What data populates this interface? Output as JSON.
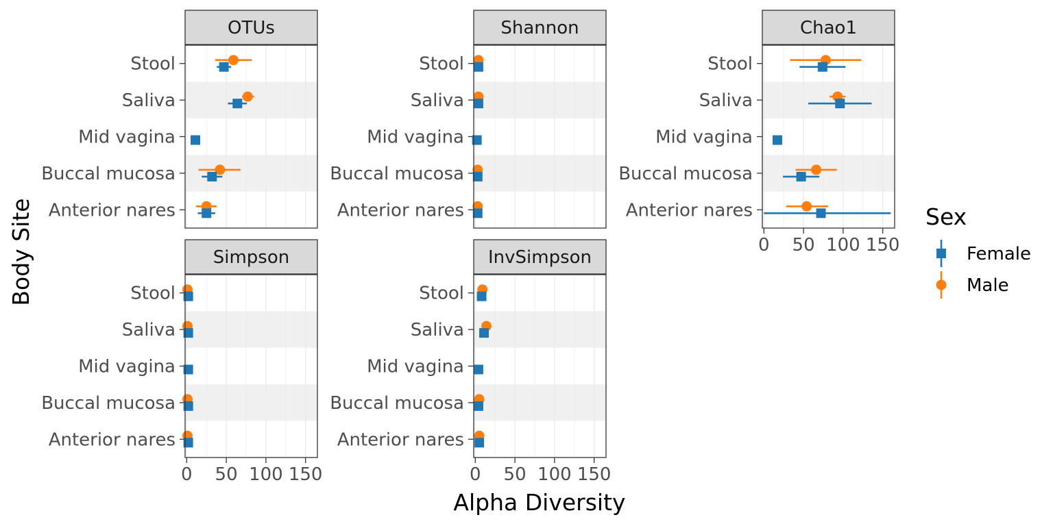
{
  "chart_data": {
    "type": "scatter",
    "xlabel": "Alpha Diversity",
    "ylabel": "Body Site",
    "xlim": [
      -2,
      165
    ],
    "xticks": [
      "0",
      "50",
      "100",
      "150"
    ],
    "xtick_values": [
      0,
      50,
      100,
      150
    ],
    "categories": [
      "Stool",
      "Saliva",
      "Mid vagina",
      "Buccal mucosa",
      "Anterior nares"
    ],
    "legend": {
      "title": "Sex",
      "position": "right",
      "entries": [
        {
          "name": "Female",
          "color": "#1f77b4",
          "shape": "square"
        },
        {
          "name": "Male",
          "color": "#ff7f0e",
          "shape": "circle"
        }
      ]
    },
    "colors": {
      "Female": "#1f77b4",
      "Male": "#ff7f0e",
      "strip_fill": "#d9d9d9",
      "band_fill": "#f0f0f0"
    },
    "facets": [
      {
        "name": "OTUs",
        "series": [
          {
            "name": "Female",
            "points": [
              {
                "site": "Stool",
                "x": 47,
                "lo": 38,
                "hi": 56
              },
              {
                "site": "Saliva",
                "x": 64,
                "lo": 52,
                "hi": 76
              },
              {
                "site": "Mid vagina",
                "x": 11,
                "lo": 9,
                "hi": 13
              },
              {
                "site": "Buccal mucosa",
                "x": 32,
                "lo": 19,
                "hi": 45
              },
              {
                "site": "Anterior nares",
                "x": 25,
                "lo": 14,
                "hi": 36
              }
            ]
          },
          {
            "name": "Male",
            "points": [
              {
                "site": "Stool",
                "x": 59,
                "lo": 36,
                "hi": 82
              },
              {
                "site": "Saliva",
                "x": 77,
                "lo": 70,
                "hi": 85
              },
              {
                "site": "Buccal mucosa",
                "x": 42,
                "lo": 15,
                "hi": 68
              },
              {
                "site": "Anterior nares",
                "x": 25,
                "lo": 12,
                "hi": 38
              }
            ]
          }
        ]
      },
      {
        "name": "Shannon",
        "series": [
          {
            "name": "Female",
            "points": [
              {
                "site": "Stool",
                "x": 4,
                "lo": 3,
                "hi": 5
              },
              {
                "site": "Saliva",
                "x": 4,
                "lo": 3,
                "hi": 5
              },
              {
                "site": "Mid vagina",
                "x": 2,
                "lo": 1,
                "hi": 3
              },
              {
                "site": "Buccal mucosa",
                "x": 3,
                "lo": 2,
                "hi": 4
              },
              {
                "site": "Anterior nares",
                "x": 3,
                "lo": 2,
                "hi": 4
              }
            ]
          },
          {
            "name": "Male",
            "points": [
              {
                "site": "Stool",
                "x": 4,
                "lo": 3,
                "hi": 5
              },
              {
                "site": "Saliva",
                "x": 4,
                "lo": 3,
                "hi": 5
              },
              {
                "site": "Buccal mucosa",
                "x": 3,
                "lo": 2,
                "hi": 4
              },
              {
                "site": "Anterior nares",
                "x": 3,
                "lo": 2,
                "hi": 4
              }
            ]
          }
        ]
      },
      {
        "name": "Chao1",
        "series": [
          {
            "name": "Female",
            "points": [
              {
                "site": "Stool",
                "x": 74,
                "lo": 45,
                "hi": 103
              },
              {
                "site": "Saliva",
                "x": 96,
                "lo": 56,
                "hi": 136
              },
              {
                "site": "Mid vagina",
                "x": 17,
                "lo": 12,
                "hi": 23
              },
              {
                "site": "Buccal mucosa",
                "x": 47,
                "lo": 24,
                "hi": 70
              },
              {
                "site": "Anterior nares",
                "x": 72,
                "lo": 0,
                "hi": 160
              }
            ]
          },
          {
            "name": "Male",
            "points": [
              {
                "site": "Stool",
                "x": 78,
                "lo": 33,
                "hi": 123
              },
              {
                "site": "Saliva",
                "x": 93,
                "lo": 83,
                "hi": 103
              },
              {
                "site": "Buccal mucosa",
                "x": 66,
                "lo": 40,
                "hi": 92
              },
              {
                "site": "Anterior nares",
                "x": 54,
                "lo": 28,
                "hi": 81
              }
            ]
          }
        ]
      },
      {
        "name": "Simpson",
        "series": [
          {
            "name": "Female",
            "points": [
              {
                "site": "Stool",
                "x": 2,
                "lo": 1,
                "hi": 3
              },
              {
                "site": "Saliva",
                "x": 2,
                "lo": 1,
                "hi": 3
              },
              {
                "site": "Mid vagina",
                "x": 2,
                "lo": 1,
                "hi": 3
              },
              {
                "site": "Buccal mucosa",
                "x": 2,
                "lo": 1,
                "hi": 3
              },
              {
                "site": "Anterior nares",
                "x": 2,
                "lo": 1,
                "hi": 3
              }
            ]
          },
          {
            "name": "Male",
            "points": [
              {
                "site": "Stool",
                "x": 1,
                "lo": 0.5,
                "hi": 1.5
              },
              {
                "site": "Saliva",
                "x": 1,
                "lo": 0.5,
                "hi": 1.5
              },
              {
                "site": "Buccal mucosa",
                "x": 1,
                "lo": 0.5,
                "hi": 1.5
              },
              {
                "site": "Anterior nares",
                "x": 1,
                "lo": 0.5,
                "hi": 1.5
              }
            ]
          }
        ]
      },
      {
        "name": "InvSimpson",
        "series": [
          {
            "name": "Female",
            "points": [
              {
                "site": "Stool",
                "x": 8,
                "lo": 7,
                "hi": 9
              },
              {
                "site": "Saliva",
                "x": 11,
                "lo": 9,
                "hi": 13
              },
              {
                "site": "Mid vagina",
                "x": 4,
                "lo": 3,
                "hi": 5
              },
              {
                "site": "Buccal mucosa",
                "x": 4,
                "lo": 3,
                "hi": 5
              },
              {
                "site": "Anterior nares",
                "x": 5,
                "lo": 4,
                "hi": 6
              }
            ]
          },
          {
            "name": "Male",
            "points": [
              {
                "site": "Stool",
                "x": 9,
                "lo": 8,
                "hi": 10
              },
              {
                "site": "Saliva",
                "x": 14,
                "lo": 12,
                "hi": 16
              },
              {
                "site": "Buccal mucosa",
                "x": 5,
                "lo": 4,
                "hi": 6
              },
              {
                "site": "Anterior nares",
                "x": 5,
                "lo": 4,
                "hi": 6
              }
            ]
          }
        ]
      }
    ]
  }
}
